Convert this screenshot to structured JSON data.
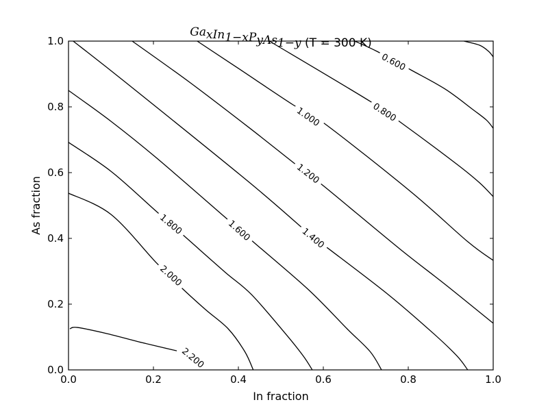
{
  "chart_data": {
    "type": "contour",
    "title": {
      "formula": [
        {
          "base": "Ga",
          "sub": "x"
        },
        {
          "base": "In",
          "sub": "1−x"
        },
        {
          "base": "P",
          "sub": "y"
        },
        {
          "base": "As",
          "sub": "1−y"
        }
      ],
      "suffix": " (T = 300 K)"
    },
    "xlabel": "In fraction",
    "ylabel": "As fraction",
    "xlim": [
      0.0,
      1.0
    ],
    "ylim": [
      0.0,
      1.0
    ],
    "xticks": [
      "0.0",
      "0.2",
      "0.4",
      "0.6",
      "0.8",
      "1.0"
    ],
    "yticks": [
      "0.0",
      "0.2",
      "0.4",
      "0.6",
      "0.8",
      "1.0"
    ],
    "grid": false,
    "line_color": "#000000",
    "levels": [
      {
        "level": 0.4,
        "label": "",
        "points": [
          [
            0.931,
            1
          ],
          [
            0.968,
            0.9875
          ],
          [
            0.989,
            0.969
          ],
          [
            1,
            0.952
          ]
        ]
      },
      {
        "level": 0.6,
        "label": "0.600",
        "label_at": [
          0.766,
          0.9375
        ],
        "points": [
          [
            0.674,
            1
          ],
          [
            0.726,
            0.969
          ],
          [
            0.806,
            0.9125
          ],
          [
            0.887,
            0.854
          ],
          [
            0.952,
            0.792
          ],
          [
            0.984,
            0.76
          ],
          [
            1,
            0.735
          ]
        ]
      },
      {
        "level": 0.8,
        "label": "0.800",
        "label_at": [
          0.745,
          0.785
        ],
        "points": [
          [
            0.473,
            1
          ],
          [
            0.71,
            0.817
          ],
          [
            0.785,
            0.75
          ],
          [
            0.915,
            0.625
          ],
          [
            0.968,
            0.569
          ],
          [
            1,
            0.527
          ]
        ]
      },
      {
        "level": 1.0,
        "label": "1.000",
        "label_at": [
          0.565,
          0.771
        ],
        "points": [
          [
            0.303,
            1
          ],
          [
            0.4,
            0.917
          ],
          [
            0.529,
            0.806
          ],
          [
            0.602,
            0.75
          ],
          [
            0.806,
            0.542
          ],
          [
            0.94,
            0.39
          ],
          [
            1,
            0.333
          ]
        ]
      },
      {
        "level": 1.2,
        "label": "1.200",
        "label_at": [
          0.565,
          0.598
        ],
        "points": [
          [
            0.15,
            1
          ],
          [
            0.285,
            0.875
          ],
          [
            0.427,
            0.735
          ],
          [
            0.529,
            0.631
          ],
          [
            0.602,
            0.558
          ],
          [
            0.779,
            0.369
          ],
          [
            0.887,
            0.26
          ],
          [
            1,
            0.142
          ]
        ]
      },
      {
        "level": 1.4,
        "label": "1.400",
        "label_at": [
          0.577,
          0.402
        ],
        "points": [
          [
            0.011,
            1
          ],
          [
            0.134,
            0.875
          ],
          [
            0.427,
            0.569
          ],
          [
            0.577,
            0.402
          ],
          [
            0.616,
            0.365
          ],
          [
            0.753,
            0.229
          ],
          [
            0.86,
            0.11
          ],
          [
            0.915,
            0.042
          ],
          [
            0.94,
            0
          ]
        ]
      },
      {
        "level": 1.6,
        "label": "1.600",
        "label_at": [
          0.403,
          0.425
        ],
        "points": [
          [
            0,
            0.85
          ],
          [
            0.1,
            0.756
          ],
          [
            0.206,
            0.646
          ],
          [
            0.368,
            0.465
          ],
          [
            0.439,
            0.385
          ],
          [
            0.565,
            0.244
          ],
          [
            0.656,
            0.125
          ],
          [
            0.71,
            0.056
          ],
          [
            0.737,
            0
          ]
        ]
      },
      {
        "level": 1.8,
        "label": "1.800",
        "label_at": [
          0.242,
          0.444
        ],
        "points": [
          [
            0,
            0.692
          ],
          [
            0.1,
            0.604
          ],
          [
            0.206,
            0.483
          ],
          [
            0.277,
            0.402
          ],
          [
            0.368,
            0.298
          ],
          [
            0.431,
            0.229
          ],
          [
            0.511,
            0.11
          ],
          [
            0.553,
            0.042
          ],
          [
            0.574,
            0
          ]
        ]
      },
      {
        "level": 2.0,
        "label": "2.000",
        "label_at": [
          0.242,
          0.2875
        ],
        "points": [
          [
            0,
            0.5375
          ],
          [
            0.1,
            0.473
          ],
          [
            0.206,
            0.327
          ],
          [
            0.266,
            0.25
          ],
          [
            0.323,
            0.183
          ],
          [
            0.376,
            0.125
          ],
          [
            0.415,
            0.056
          ],
          [
            0.435,
            0
          ]
        ]
      },
      {
        "level": 2.2,
        "label": "2.200",
        "label_at": [
          0.294,
          0.0375
        ],
        "points": [
          [
            0.003,
            0.125
          ],
          [
            0.021,
            0.129
          ],
          [
            0.092,
            0.11
          ],
          [
            0.173,
            0.083
          ],
          [
            0.255,
            0.058
          ]
        ]
      }
    ]
  }
}
